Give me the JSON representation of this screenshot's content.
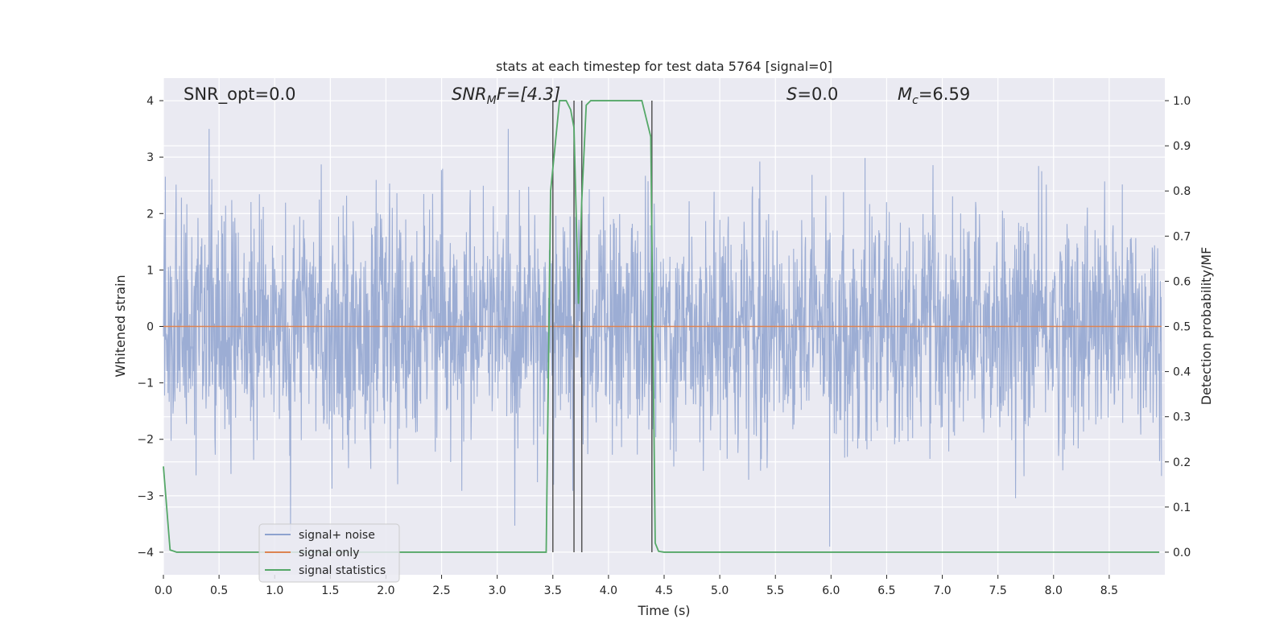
{
  "chart_data": {
    "type": "line",
    "title": "stats at each timestep for test data 5764 [signal=0]",
    "xlabel": "Time (s)",
    "ylabel": "Whitened strain",
    "ylabel_right": "Detection probability/MF",
    "xlim": [
      0,
      9
    ],
    "ylim": [
      -4.4,
      4.4
    ],
    "ylim_right": [
      -0.05,
      1.05
    ],
    "x_ticks": [
      "0.0",
      "0.5",
      "1.0",
      "1.5",
      "2.0",
      "2.5",
      "3.0",
      "3.5",
      "4.0",
      "4.5",
      "5.0",
      "5.5",
      "6.0",
      "6.5",
      "7.0",
      "7.5",
      "8.0",
      "8.5"
    ],
    "y_ticks": [
      "4",
      "3",
      "2",
      "1",
      "0",
      "−1",
      "−2",
      "−3",
      "−4"
    ],
    "y_ticks_right": [
      "1.0",
      "0.9",
      "0.8",
      "0.7",
      "0.6",
      "0.5",
      "0.4",
      "0.3",
      "0.2",
      "0.1",
      "0.0"
    ],
    "grid": true,
    "legend_position": "lower-left",
    "annotations": {
      "snr_opt": "SNR_opt=0.0",
      "snr_mf_main": "SNR",
      "snr_mf_sub": "M",
      "snr_mf_rest": "F=[4.3]",
      "s_main": "S",
      "s_rest": "=0.0",
      "mc_main": "M",
      "mc_sub": "c",
      "mc_rest": "=6.59"
    },
    "series": [
      {
        "name": "signal+ noise",
        "color": "#8ea2cf",
        "description": "whitened strain noise, amplitude roughly within ±2.5 with spikes to ±3.5"
      },
      {
        "name": "signal only",
        "color": "#dd8452",
        "values_constant": 0
      },
      {
        "name": "signal statistics",
        "color": "#55a868",
        "axis": "right",
        "x": [
          0.0,
          0.06,
          0.12,
          0.2,
          3.0,
          3.44,
          3.48,
          3.52,
          3.56,
          3.62,
          3.66,
          3.69,
          3.73,
          3.76,
          3.8,
          3.84,
          3.9,
          4.0,
          4.1,
          4.2,
          4.3,
          4.38,
          4.42,
          4.45,
          4.5,
          5.0,
          8.95
        ],
        "values": [
          0.19,
          0.005,
          0.0,
          0.0,
          0.0,
          0.0,
          0.8,
          0.9,
          1.0,
          1.0,
          0.98,
          0.94,
          0.55,
          0.78,
          0.99,
          1.0,
          1.0,
          1.0,
          1.0,
          1.0,
          1.0,
          0.92,
          0.02,
          0.002,
          0.0,
          0.0,
          0.0
        ]
      }
    ],
    "vertical_lines_x": [
      3.5,
      3.69,
      3.76,
      4.39
    ],
    "vertical_line_color": "#555555",
    "background_color": "#eaeaf2"
  }
}
